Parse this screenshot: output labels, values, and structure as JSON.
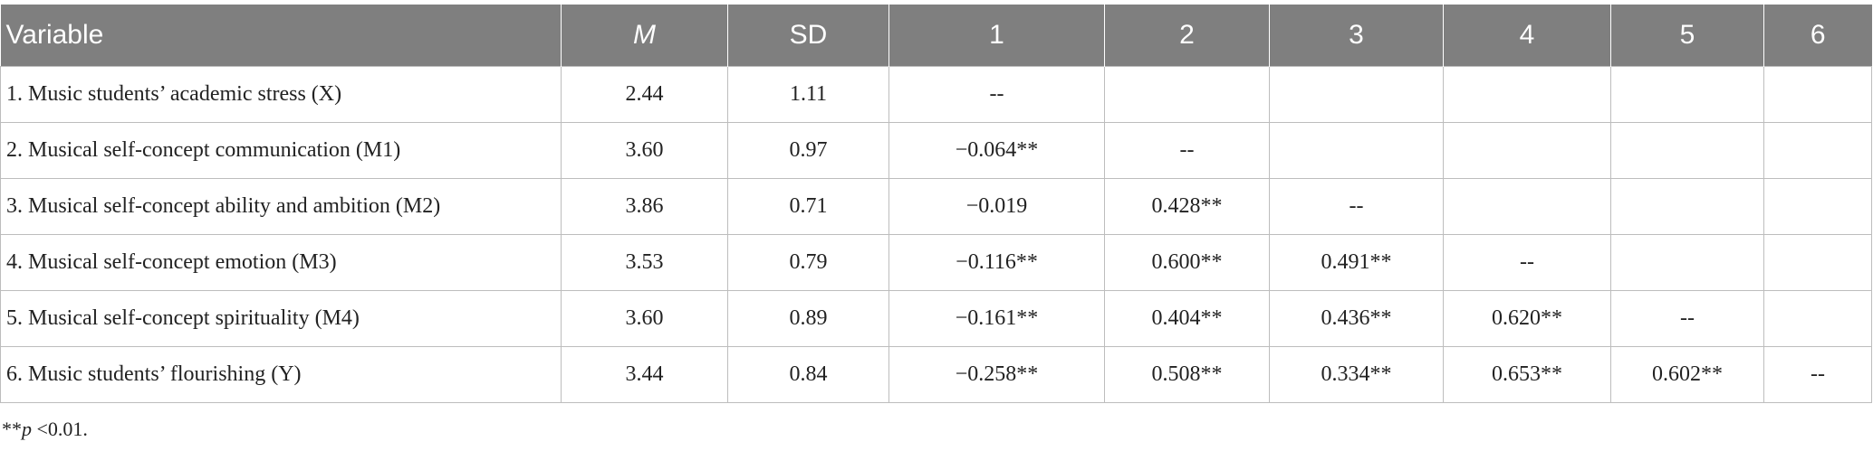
{
  "table": {
    "header": [
      "Variable",
      "M",
      "SD",
      "1",
      "2",
      "3",
      "4",
      "5",
      "6"
    ],
    "rows": [
      [
        "1. Music students’ academic stress (X)",
        "2.44",
        "1.11",
        "--"
      ],
      [
        "2. Musical self-concept communication (M1)",
        "3.60",
        "0.97",
        "−0.064**",
        "--"
      ],
      [
        "3. Musical self-concept ability and ambition (M2)",
        "3.86",
        "0.71",
        "−0.019",
        "0.428**",
        "--"
      ],
      [
        "4. Musical self-concept emotion (M3)",
        "3.53",
        "0.79",
        "−0.116**",
        "0.600**",
        "0.491**",
        "--"
      ],
      [
        "5. Musical self-concept spirituality (M4)",
        "3.60",
        "0.89",
        "−0.161**",
        "0.404**",
        "0.436**",
        "0.620**",
        "--"
      ],
      [
        "6. Music students’ flourishing (Y)",
        "3.44",
        "0.84",
        "−0.258**",
        "0.508**",
        "0.334**",
        "0.653**",
        "0.602**",
        "--"
      ]
    ]
  },
  "footnote": {
    "prefix": "**",
    "italic": "p",
    "suffix": " <0.01."
  }
}
